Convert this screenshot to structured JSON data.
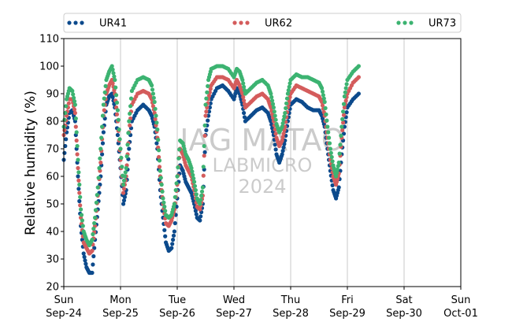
{
  "chart_data": {
    "type": "scatter",
    "ylabel": "Relative humidity (%)",
    "xlabel": "",
    "ylim": [
      20,
      110
    ],
    "yticks": [
      20,
      30,
      40,
      50,
      60,
      70,
      80,
      90,
      100,
      110
    ],
    "xlim_days": [
      0,
      7
    ],
    "xticks": [
      {
        "day": 0,
        "weekday": "Sun",
        "date": "Sep-24"
      },
      {
        "day": 1,
        "weekday": "Mon",
        "date": "Sep-25"
      },
      {
        "day": 2,
        "weekday": "Tue",
        "date": "Sep-26"
      },
      {
        "day": 3,
        "weekday": "Wed",
        "date": "Sep-27"
      },
      {
        "day": 4,
        "weekday": "Thu",
        "date": "Sep-28"
      },
      {
        "day": 5,
        "weekday": "Fri",
        "date": "Sep-29"
      },
      {
        "day": 6,
        "weekday": "Sat",
        "date": "Sep-30"
      },
      {
        "day": 7,
        "weekday": "Sun",
        "date": "Oct-01"
      }
    ],
    "grid": "vertical",
    "legend_position": "top",
    "watermark": [
      "IAG MATAO",
      "LABMICRO",
      "2024"
    ],
    "series": [
      {
        "name": "UR41",
        "color": "#0c4a8c",
        "points": [
          [
            0,
            66
          ],
          [
            0.05,
            76
          ],
          [
            0.1,
            83
          ],
          [
            0.15,
            84
          ],
          [
            0.2,
            80
          ],
          [
            0.25,
            60
          ],
          [
            0.3,
            42
          ],
          [
            0.35,
            32
          ],
          [
            0.4,
            27
          ],
          [
            0.45,
            25
          ],
          [
            0.5,
            25
          ],
          [
            0.55,
            37
          ],
          [
            0.6,
            48
          ],
          [
            0.65,
            60
          ],
          [
            0.7,
            76
          ],
          [
            0.75,
            86
          ],
          [
            0.8,
            89
          ],
          [
            0.85,
            90
          ],
          [
            0.9,
            85
          ],
          [
            0.95,
            75
          ],
          [
            1.0,
            63
          ],
          [
            1.05,
            50
          ],
          [
            1.1,
            55
          ],
          [
            1.15,
            70
          ],
          [
            1.2,
            80
          ],
          [
            1.3,
            84
          ],
          [
            1.4,
            86
          ],
          [
            1.5,
            84
          ],
          [
            1.55,
            82
          ],
          [
            1.6,
            78
          ],
          [
            1.65,
            70
          ],
          [
            1.7,
            55
          ],
          [
            1.75,
            45
          ],
          [
            1.8,
            36
          ],
          [
            1.85,
            33
          ],
          [
            1.9,
            34
          ],
          [
            1.95,
            40
          ],
          [
            2.0,
            52
          ],
          [
            2.05,
            64
          ],
          [
            2.1,
            62
          ],
          [
            2.15,
            58
          ],
          [
            2.2,
            56
          ],
          [
            2.25,
            54
          ],
          [
            2.3,
            50
          ],
          [
            2.35,
            45
          ],
          [
            2.4,
            44
          ],
          [
            2.45,
            50
          ],
          [
            2.5,
            75
          ],
          [
            2.55,
            82
          ],
          [
            2.6,
            88
          ],
          [
            2.7,
            92
          ],
          [
            2.8,
            93
          ],
          [
            2.9,
            91
          ],
          [
            3.0,
            88
          ],
          [
            3.05,
            92
          ],
          [
            3.1,
            90
          ],
          [
            3.15,
            86
          ],
          [
            3.2,
            80
          ],
          [
            3.3,
            82
          ],
          [
            3.4,
            84
          ],
          [
            3.5,
            85
          ],
          [
            3.6,
            83
          ],
          [
            3.65,
            80
          ],
          [
            3.7,
            75
          ],
          [
            3.75,
            68
          ],
          [
            3.8,
            65
          ],
          [
            3.85,
            68
          ],
          [
            3.9,
            73
          ],
          [
            3.95,
            80
          ],
          [
            4.0,
            86
          ],
          [
            4.1,
            88
          ],
          [
            4.2,
            87
          ],
          [
            4.3,
            85
          ],
          [
            4.4,
            84
          ],
          [
            4.5,
            84
          ],
          [
            4.55,
            82
          ],
          [
            4.6,
            78
          ],
          [
            4.65,
            70
          ],
          [
            4.7,
            62
          ],
          [
            4.75,
            55
          ],
          [
            4.8,
            52
          ],
          [
            4.85,
            56
          ],
          [
            4.9,
            68
          ],
          [
            4.95,
            78
          ],
          [
            5.0,
            85
          ],
          [
            5.1,
            88
          ],
          [
            5.2,
            90
          ]
        ]
      },
      {
        "name": "UR62",
        "color": "#d45c5c",
        "points": [
          [
            0,
            75
          ],
          [
            0.05,
            82
          ],
          [
            0.1,
            88
          ],
          [
            0.15,
            88
          ],
          [
            0.2,
            83
          ],
          [
            0.25,
            63
          ],
          [
            0.3,
            45
          ],
          [
            0.35,
            36
          ],
          [
            0.4,
            34
          ],
          [
            0.45,
            32
          ],
          [
            0.5,
            33
          ],
          [
            0.55,
            42
          ],
          [
            0.6,
            53
          ],
          [
            0.65,
            65
          ],
          [
            0.7,
            82
          ],
          [
            0.75,
            90
          ],
          [
            0.8,
            93
          ],
          [
            0.85,
            95
          ],
          [
            0.9,
            90
          ],
          [
            0.95,
            80
          ],
          [
            1.0,
            66
          ],
          [
            1.05,
            54
          ],
          [
            1.1,
            60
          ],
          [
            1.15,
            76
          ],
          [
            1.2,
            86
          ],
          [
            1.3,
            90
          ],
          [
            1.4,
            91
          ],
          [
            1.5,
            90
          ],
          [
            1.55,
            88
          ],
          [
            1.6,
            83
          ],
          [
            1.65,
            74
          ],
          [
            1.7,
            60
          ],
          [
            1.75,
            50
          ],
          [
            1.8,
            43
          ],
          [
            1.85,
            42
          ],
          [
            1.9,
            44
          ],
          [
            1.95,
            48
          ],
          [
            2.0,
            57
          ],
          [
            2.05,
            70
          ],
          [
            2.1,
            68
          ],
          [
            2.15,
            64
          ],
          [
            2.2,
            62
          ],
          [
            2.25,
            60
          ],
          [
            2.3,
            55
          ],
          [
            2.35,
            49
          ],
          [
            2.4,
            48
          ],
          [
            2.45,
            53
          ],
          [
            2.5,
            82
          ],
          [
            2.55,
            88
          ],
          [
            2.6,
            93
          ],
          [
            2.7,
            96
          ],
          [
            2.8,
            96
          ],
          [
            2.9,
            95
          ],
          [
            3.0,
            92
          ],
          [
            3.05,
            95
          ],
          [
            3.1,
            93
          ],
          [
            3.15,
            90
          ],
          [
            3.2,
            85
          ],
          [
            3.3,
            87
          ],
          [
            3.4,
            89
          ],
          [
            3.5,
            90
          ],
          [
            3.6,
            88
          ],
          [
            3.65,
            85
          ],
          [
            3.7,
            80
          ],
          [
            3.75,
            74
          ],
          [
            3.8,
            71
          ],
          [
            3.85,
            73
          ],
          [
            3.9,
            78
          ],
          [
            3.95,
            85
          ],
          [
            4.0,
            90
          ],
          [
            4.1,
            93
          ],
          [
            4.2,
            92
          ],
          [
            4.3,
            91
          ],
          [
            4.4,
            90
          ],
          [
            4.5,
            89
          ],
          [
            4.55,
            87
          ],
          [
            4.6,
            82
          ],
          [
            4.65,
            74
          ],
          [
            4.7,
            66
          ],
          [
            4.75,
            60
          ],
          [
            4.8,
            57
          ],
          [
            4.85,
            61
          ],
          [
            4.9,
            74
          ],
          [
            4.95,
            85
          ],
          [
            5.0,
            90
          ],
          [
            5.1,
            94
          ],
          [
            5.2,
            96
          ]
        ]
      },
      {
        "name": "UR73",
        "color": "#3cb371",
        "points": [
          [
            0,
            78
          ],
          [
            0.05,
            88
          ],
          [
            0.1,
            92
          ],
          [
            0.15,
            91
          ],
          [
            0.2,
            86
          ],
          [
            0.25,
            66
          ],
          [
            0.3,
            48
          ],
          [
            0.35,
            40
          ],
          [
            0.4,
            37
          ],
          [
            0.45,
            35
          ],
          [
            0.5,
            37
          ],
          [
            0.55,
            45
          ],
          [
            0.6,
            56
          ],
          [
            0.65,
            70
          ],
          [
            0.7,
            86
          ],
          [
            0.75,
            95
          ],
          [
            0.8,
            98
          ],
          [
            0.85,
            100
          ],
          [
            0.9,
            95
          ],
          [
            0.95,
            84
          ],
          [
            1.0,
            70
          ],
          [
            1.05,
            57
          ],
          [
            1.1,
            63
          ],
          [
            1.15,
            80
          ],
          [
            1.2,
            91
          ],
          [
            1.3,
            95
          ],
          [
            1.4,
            96
          ],
          [
            1.5,
            95
          ],
          [
            1.55,
            93
          ],
          [
            1.6,
            87
          ],
          [
            1.65,
            77
          ],
          [
            1.7,
            62
          ],
          [
            1.75,
            52
          ],
          [
            1.8,
            46
          ],
          [
            1.85,
            45
          ],
          [
            1.9,
            46
          ],
          [
            1.95,
            50
          ],
          [
            2.0,
            60
          ],
          [
            2.05,
            73
          ],
          [
            2.1,
            72
          ],
          [
            2.15,
            68
          ],
          [
            2.2,
            66
          ],
          [
            2.25,
            63
          ],
          [
            2.3,
            58
          ],
          [
            2.35,
            52
          ],
          [
            2.4,
            50
          ],
          [
            2.45,
            56
          ],
          [
            2.5,
            86
          ],
          [
            2.55,
            95
          ],
          [
            2.6,
            99
          ],
          [
            2.7,
            100
          ],
          [
            2.8,
            100
          ],
          [
            2.9,
            99
          ],
          [
            3.0,
            96
          ],
          [
            3.05,
            99
          ],
          [
            3.1,
            98
          ],
          [
            3.15,
            95
          ],
          [
            3.2,
            90
          ],
          [
            3.3,
            92
          ],
          [
            3.4,
            94
          ],
          [
            3.5,
            95
          ],
          [
            3.6,
            93
          ],
          [
            3.65,
            90
          ],
          [
            3.7,
            85
          ],
          [
            3.75,
            79
          ],
          [
            3.8,
            76
          ],
          [
            3.85,
            78
          ],
          [
            3.9,
            83
          ],
          [
            3.95,
            90
          ],
          [
            4.0,
            95
          ],
          [
            4.1,
            97
          ],
          [
            4.2,
            96
          ],
          [
            4.3,
            96
          ],
          [
            4.4,
            95
          ],
          [
            4.5,
            94
          ],
          [
            4.55,
            92
          ],
          [
            4.6,
            87
          ],
          [
            4.65,
            78
          ],
          [
            4.7,
            70
          ],
          [
            4.75,
            64
          ],
          [
            4.8,
            60
          ],
          [
            4.85,
            65
          ],
          [
            4.9,
            78
          ],
          [
            4.95,
            89
          ],
          [
            5.0,
            95
          ],
          [
            5.1,
            98
          ],
          [
            5.2,
            100
          ]
        ]
      }
    ]
  }
}
